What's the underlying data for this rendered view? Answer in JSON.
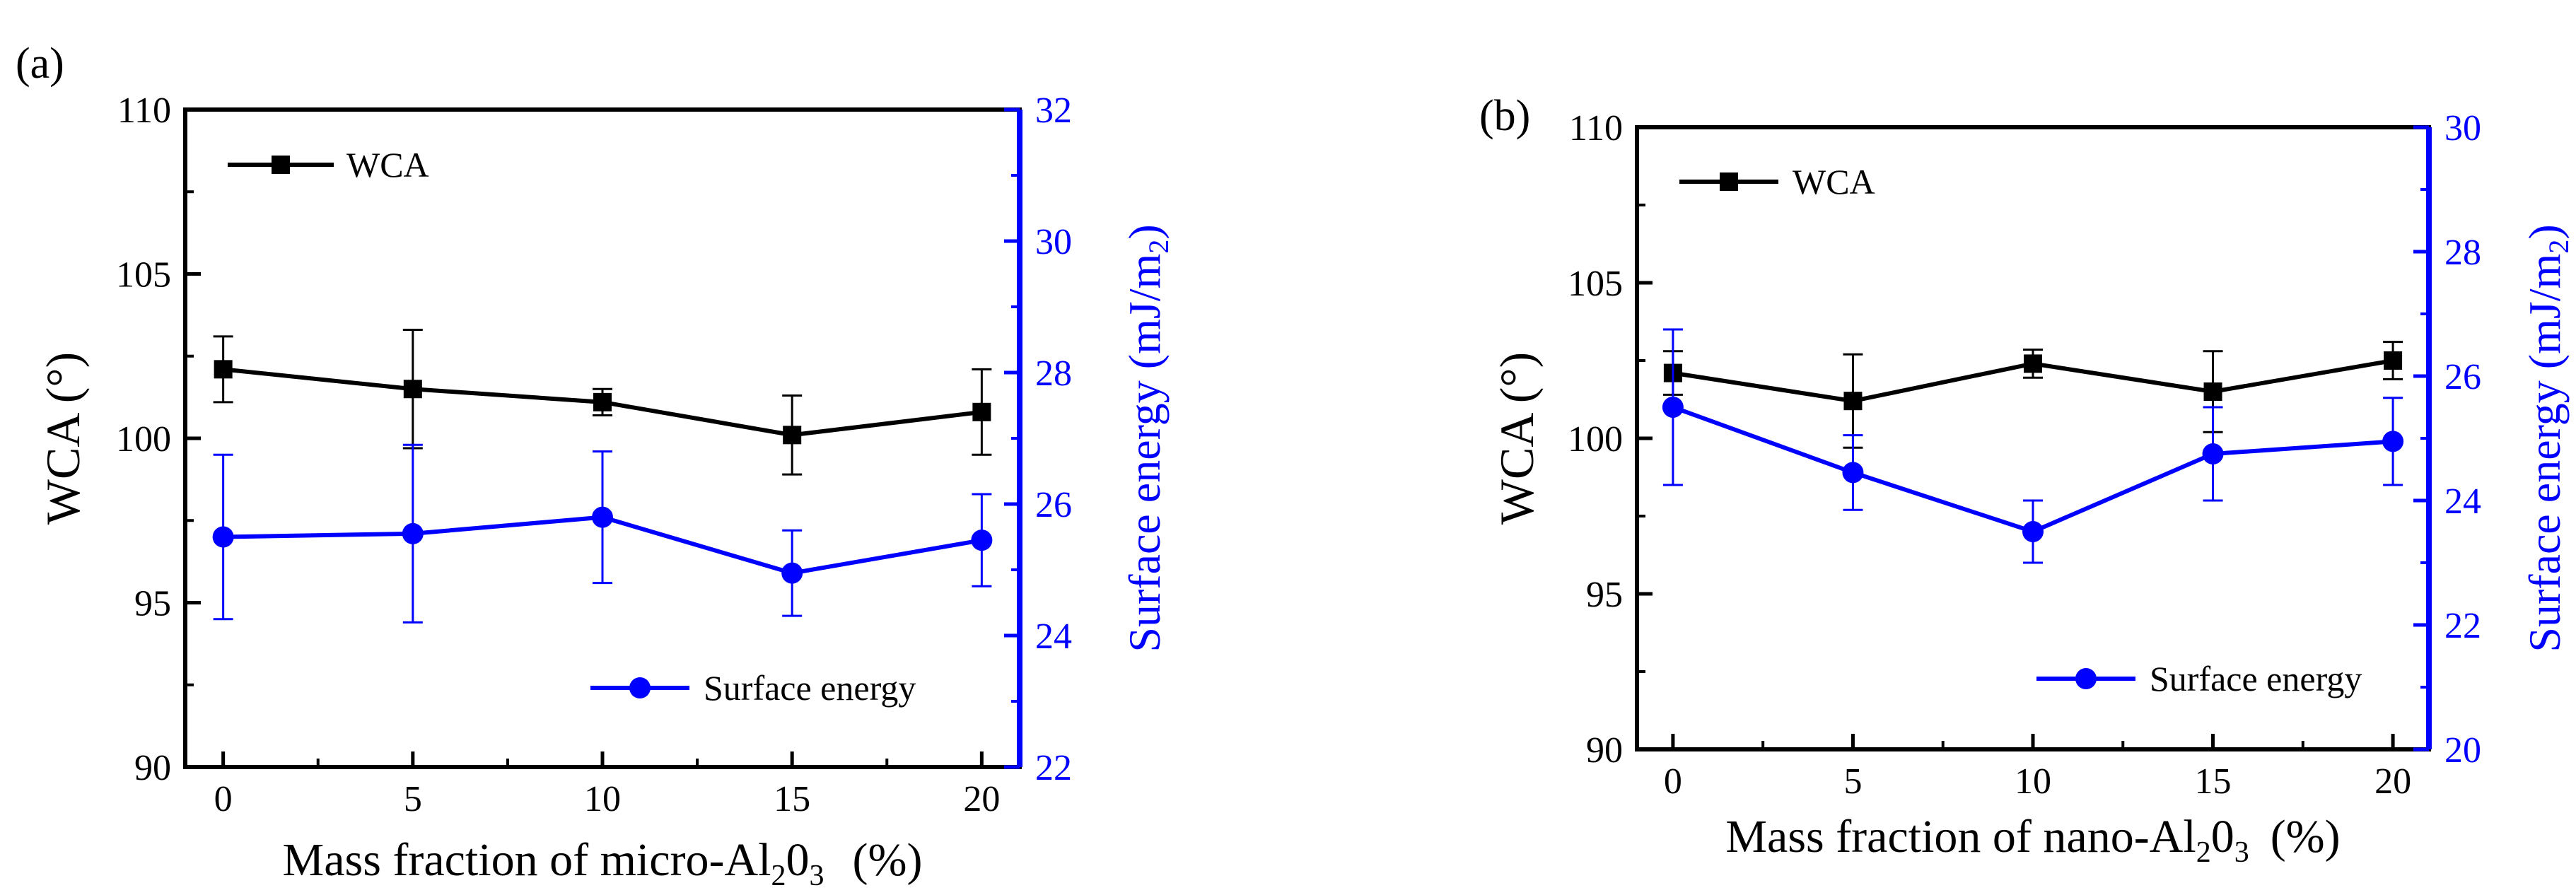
{
  "chart_data": [
    {
      "panel_label": "(a)",
      "type": "line",
      "x": [
        0,
        5,
        10,
        15,
        20
      ],
      "xlabel_main": "Mass fraction of micro-Al",
      "xlabel_sub1": "2",
      "xlabel_mid": "0",
      "xlabel_sub2": "3",
      "xlabel_unit": "(%)",
      "ylabel": "WCA (°)",
      "ylabel2_main": "Surface energy (mJ/m",
      "ylabel2_sub": "2",
      "ylabel2_end": ")",
      "xlim": [
        -1,
        21
      ],
      "ylim": [
        90,
        110
      ],
      "y2lim": [
        22,
        32
      ],
      "xticks": [
        0,
        5,
        10,
        15,
        20
      ],
      "yticks": [
        90,
        95,
        100,
        105,
        110
      ],
      "y2ticks": [
        22,
        24,
        26,
        28,
        30,
        32
      ],
      "series": [
        {
          "name": "WCA",
          "axis": "left",
          "color": "#000000",
          "marker": "square",
          "values": [
            102.1,
            101.5,
            101.1,
            100.1,
            100.8
          ],
          "errors": [
            1.0,
            1.8,
            0.4,
            1.2,
            1.3
          ]
        },
        {
          "name": "Surface energy",
          "axis": "right",
          "color": "#0000ff",
          "marker": "circle",
          "values": [
            25.5,
            25.55,
            25.8,
            24.95,
            25.45
          ],
          "errors": [
            1.25,
            1.35,
            1.0,
            0.65,
            0.7
          ]
        }
      ],
      "legend": [
        "WCA",
        "Surface energy"
      ]
    },
    {
      "panel_label": "(b)",
      "type": "line",
      "x": [
        0,
        5,
        10,
        15,
        20
      ],
      "xlabel_main": "Mass fraction of  nano-Al",
      "xlabel_sub1": "2",
      "xlabel_mid": "0",
      "xlabel_sub2": "3",
      "xlabel_unit": "(%)",
      "ylabel": "WCA (°)",
      "ylabel2_main": "Surface energy (mJ/m",
      "ylabel2_sub": "2",
      "ylabel2_end": ")",
      "xlim": [
        -1,
        21
      ],
      "ylim": [
        90,
        110
      ],
      "y2lim": [
        20,
        30
      ],
      "xticks": [
        0,
        5,
        10,
        15,
        20
      ],
      "yticks": [
        90,
        95,
        100,
        105,
        110
      ],
      "y2ticks": [
        20,
        22,
        24,
        26,
        28,
        30
      ],
      "series": [
        {
          "name": "WCA",
          "axis": "left",
          "color": "#000000",
          "marker": "square",
          "values": [
            102.1,
            101.2,
            102.4,
            101.5,
            102.5
          ],
          "errors": [
            0.7,
            1.5,
            0.45,
            1.3,
            0.6
          ]
        },
        {
          "name": "Surface energy",
          "axis": "right",
          "color": "#0000ff",
          "marker": "circle",
          "values": [
            25.5,
            24.45,
            23.5,
            24.75,
            24.95
          ],
          "errors": [
            1.25,
            0.6,
            0.5,
            0.75,
            0.7
          ]
        }
      ],
      "legend": [
        "WCA",
        "Surface energy"
      ]
    }
  ]
}
